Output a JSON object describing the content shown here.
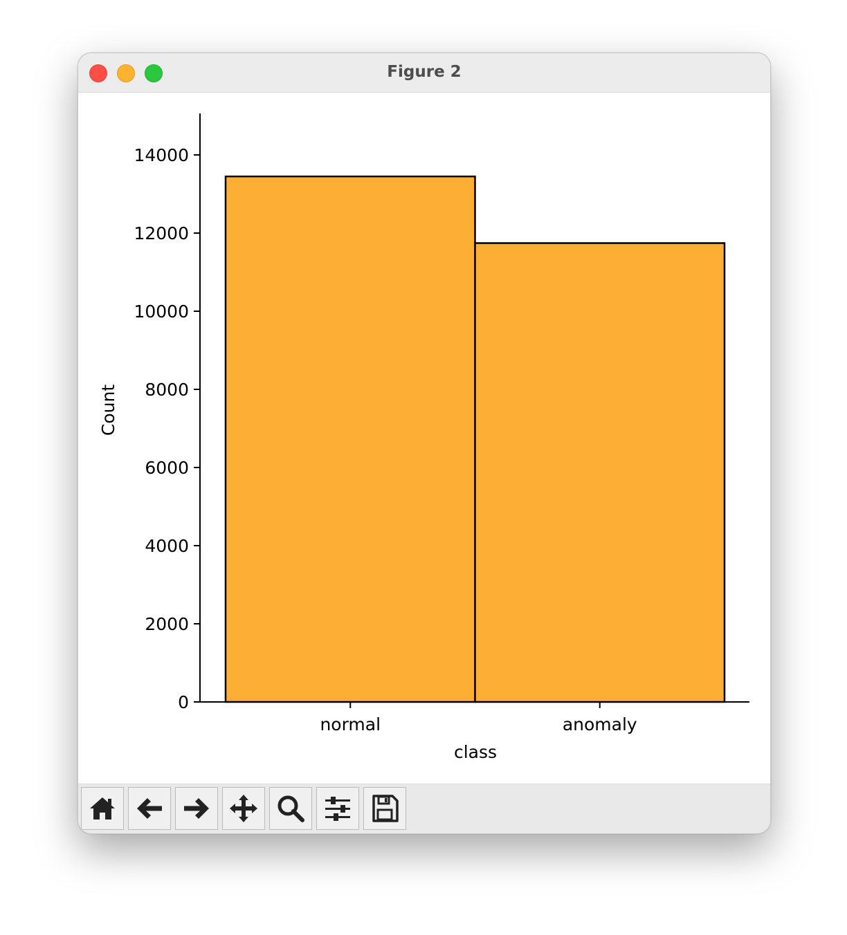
{
  "window": {
    "title": "Figure 2"
  },
  "toolbar": {
    "buttons": [
      {
        "name": "home",
        "icon": "home-icon"
      },
      {
        "name": "back",
        "icon": "arrow-left-icon"
      },
      {
        "name": "forward",
        "icon": "arrow-right-icon"
      },
      {
        "name": "pan",
        "icon": "move-icon"
      },
      {
        "name": "zoom",
        "icon": "magnifier-icon"
      },
      {
        "name": "configure-subplots",
        "icon": "sliders-icon"
      },
      {
        "name": "save",
        "icon": "floppy-disk-icon"
      }
    ]
  },
  "chart_data": {
    "type": "bar",
    "categories": [
      "normal",
      "anomaly"
    ],
    "values": [
      13449,
      11743
    ],
    "xlabel": "class",
    "ylabel": "Count",
    "ylim": [
      0,
      14000
    ],
    "yticks": [
      "0",
      "2000",
      "4000",
      "6000",
      "8000",
      "10000",
      "12000",
      "14000"
    ],
    "bar_color": "#fdae34",
    "edge_color": "#000000",
    "grid": false
  }
}
